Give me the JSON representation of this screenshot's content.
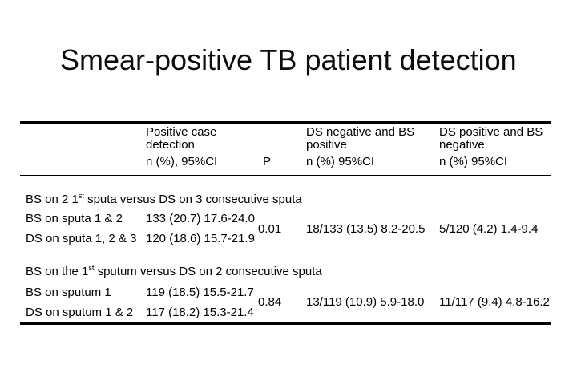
{
  "slide": {
    "title": "Smear-positive TB patient detection"
  },
  "table": {
    "columns": {
      "positive_case": {
        "title": "Positive case detection",
        "subtitle": "n (%), 95%CI"
      },
      "p": {
        "title": "P"
      },
      "ds_neg_bs_pos": {
        "title": "DS negative and BS positive",
        "subtitle": "n (%) 95%CI"
      },
      "ds_pos_bs_neg": {
        "title": "DS positive and BS negative",
        "subtitle": "n (%) 95%CI"
      }
    },
    "sections": [
      {
        "heading_prefix": "BS on 2 1",
        "heading_sup": "st",
        "heading_suffix": " sputa versus DS on 3 consecutive sputa",
        "rows": [
          {
            "label": "BS on sputa 1 & 2",
            "value": "133 (20.7) 17.6-24.0"
          },
          {
            "label": "DS on sputa 1, 2 & 3",
            "value": "120 (18.6) 15.7-21.9"
          }
        ],
        "p_value": "0.01",
        "ds_neg_bs_pos": "18/133 (13.5) 8.2-20.5",
        "ds_pos_bs_neg": "5/120 (4.2) 1.4-9.4"
      },
      {
        "heading_prefix": "BS on the 1",
        "heading_sup": "st",
        "heading_suffix": " sputum versus DS on 2 consecutive sputa",
        "rows": [
          {
            "label": "BS on sputum 1",
            "value": "119 (18.5) 15.5-21.7"
          },
          {
            "label": "DS on sputum 1 & 2",
            "value": "117 (18.2) 15.3-21.4"
          }
        ],
        "p_value": "0.84",
        "ds_neg_bs_pos": "13/119 (10.9) 5.9-18.0",
        "ds_pos_bs_neg": "11/117 (9.4) 4.8-16.2"
      }
    ]
  }
}
